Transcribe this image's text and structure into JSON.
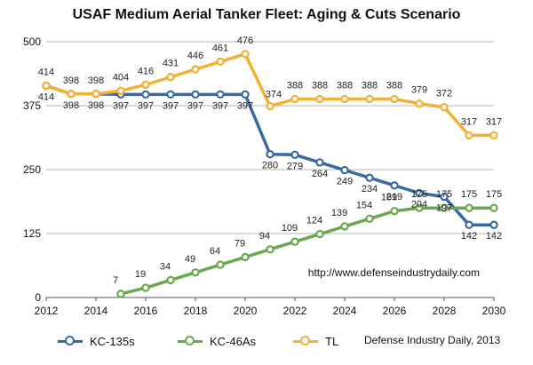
{
  "chart_data": {
    "type": "line",
    "title": "USAF Medium Aerial Tanker Fleet: Aging & Cuts Scenario",
    "xlabel": "",
    "ylabel": "",
    "xlim": [
      2012,
      2030
    ],
    "ylim": [
      0,
      500
    ],
    "x_ticks": [
      "2012",
      "2014",
      "2016",
      "2018",
      "2020",
      "2022",
      "2024",
      "2026",
      "2028",
      "2030"
    ],
    "y_ticks": [
      "0",
      "125",
      "250",
      "375",
      "500"
    ],
    "grid": true,
    "legend_position": "bottom",
    "series": [
      {
        "name": "KC-135s",
        "color": "#3a6aa0",
        "x": [
          2012,
          2013,
          2014,
          2015,
          2016,
          2017,
          2018,
          2019,
          2020,
          2021,
          2022,
          2023,
          2024,
          2025,
          2026,
          2027,
          2028,
          2029,
          2030
        ],
        "values": [
          414,
          398,
          398,
          397,
          397,
          397,
          397,
          397,
          397,
          280,
          279,
          264,
          249,
          234,
          219,
          204,
          197,
          142,
          142
        ],
        "labels": [
          "414",
          "398",
          "398",
          "397",
          "397",
          "397",
          "397",
          "397",
          "397",
          "280",
          "279",
          "264",
          "249",
          "234",
          "219",
          "204",
          "197",
          "142",
          "142"
        ]
      },
      {
        "name": "KC-46As",
        "color": "#6aa84f",
        "x": [
          2015,
          2016,
          2017,
          2018,
          2019,
          2020,
          2021,
          2022,
          2023,
          2024,
          2025,
          2026,
          2027,
          2028,
          2029,
          2030
        ],
        "values": [
          7,
          19,
          34,
          49,
          64,
          79,
          94,
          109,
          124,
          139,
          154,
          169,
          175,
          175,
          175,
          175
        ],
        "labels": [
          "7",
          "19",
          "34",
          "49",
          "64",
          "79",
          "94",
          "109",
          "124",
          "139",
          "154",
          "169",
          "175",
          "175",
          "175",
          "175"
        ]
      },
      {
        "name": "TL",
        "color": "#f2b134",
        "x": [
          2012,
          2013,
          2014,
          2015,
          2016,
          2017,
          2018,
          2019,
          2020,
          2021,
          2022,
          2023,
          2024,
          2025,
          2026,
          2027,
          2028,
          2029,
          2030
        ],
        "values": [
          414,
          398,
          398,
          404,
          416,
          431,
          446,
          461,
          476,
          374,
          388,
          388,
          388,
          388,
          388,
          379,
          372,
          317,
          317
        ],
        "labels": [
          "414",
          "398",
          "398",
          "404",
          "416",
          "431",
          "446",
          "461",
          "476",
          "374",
          "388",
          "388",
          "388",
          "388",
          "388",
          "379",
          "372",
          "317",
          "317"
        ]
      }
    ],
    "annotations": [
      "http://www.defenseindustrydaily.com"
    ],
    "credit": "Defense Industry Daily, 2013"
  }
}
